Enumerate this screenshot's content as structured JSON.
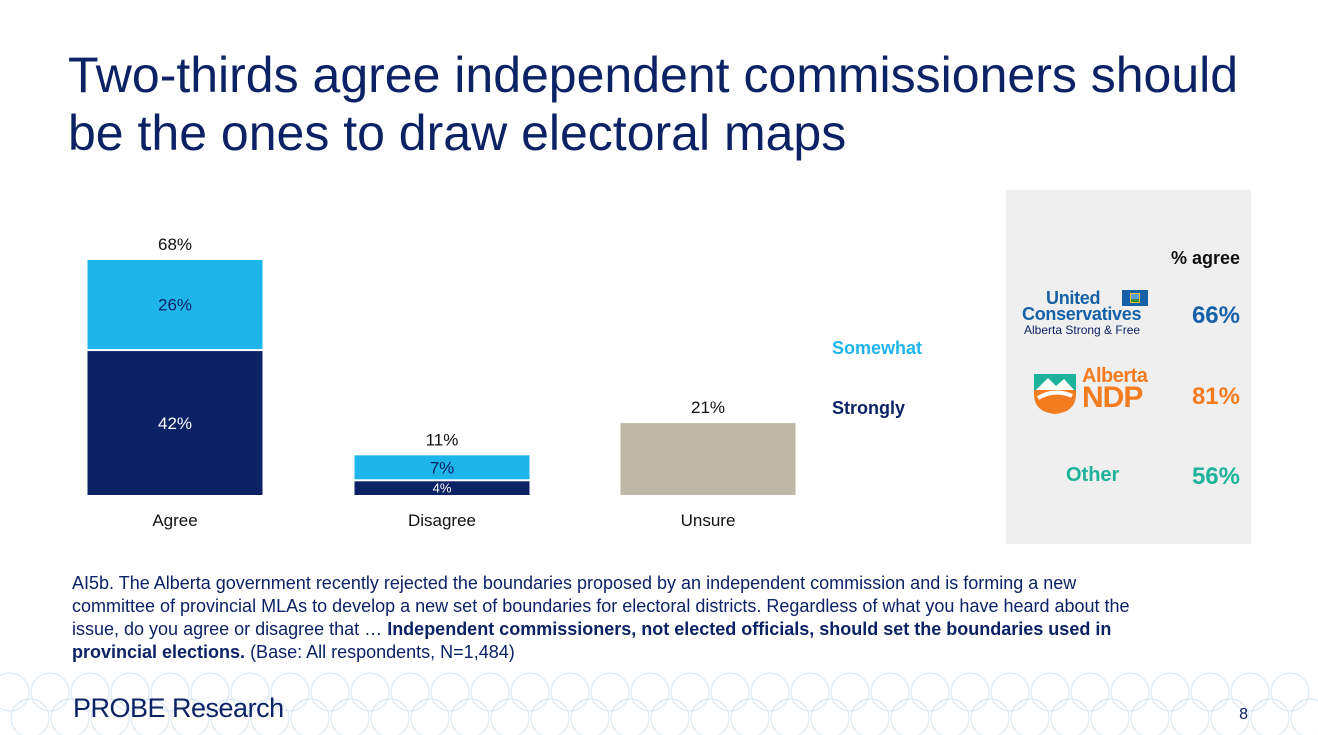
{
  "title": "Two-thirds agree independent commissioners should be the ones to draw electoral maps",
  "chart_data": {
    "type": "bar",
    "stacked": true,
    "categories": [
      "Agree",
      "Disagree",
      "Unsure"
    ],
    "series": [
      {
        "name": "Strongly",
        "values": [
          42,
          4,
          null
        ],
        "color": "#0b2265"
      },
      {
        "name": "Somewhat",
        "values": [
          26,
          7,
          null
        ],
        "color": "#1eb6ea"
      },
      {
        "name": "",
        "values": [
          null,
          null,
          21
        ],
        "color": "#bfb8a6"
      }
    ],
    "totals": [
      "68%",
      "11%",
      "21%"
    ],
    "segment_labels": {
      "strongly": [
        "42%",
        "4%",
        ""
      ],
      "somewhat": [
        "26%",
        "7%",
        ""
      ]
    },
    "legend": {
      "somewhat": "Somewhat",
      "strongly": "Strongly",
      "placement": "right"
    },
    "ylim": [
      0,
      72
    ],
    "grid": false
  },
  "party_panel": {
    "header": "% agree",
    "ucp": {
      "line1": "United",
      "line2": "Conservatives",
      "tagline": "Alberta Strong & Free",
      "value": "66%",
      "color": "#1561a8"
    },
    "ndp": {
      "line1": "Alberta",
      "line2": "NDP",
      "value": "81%",
      "color": "#f47c20"
    },
    "other": {
      "label": "Other",
      "value": "56%",
      "color": "#1db39a"
    }
  },
  "question": {
    "lead": "AI5b. The Alberta government recently rejected the boundaries proposed by an independent commission and is forming a new committee of provincial MLAs to develop a new set of boundaries for electoral districts. Regardless of what you have heard about the issue, do you agree or disagree that … ",
    "statement": "Independent commissioners, not elected officials, should set the boundaries used in provincial elections.",
    "base": " (Base: All respondents, N=1,484)"
  },
  "footer": {
    "logo": "PROBE Research",
    "page": "8"
  }
}
